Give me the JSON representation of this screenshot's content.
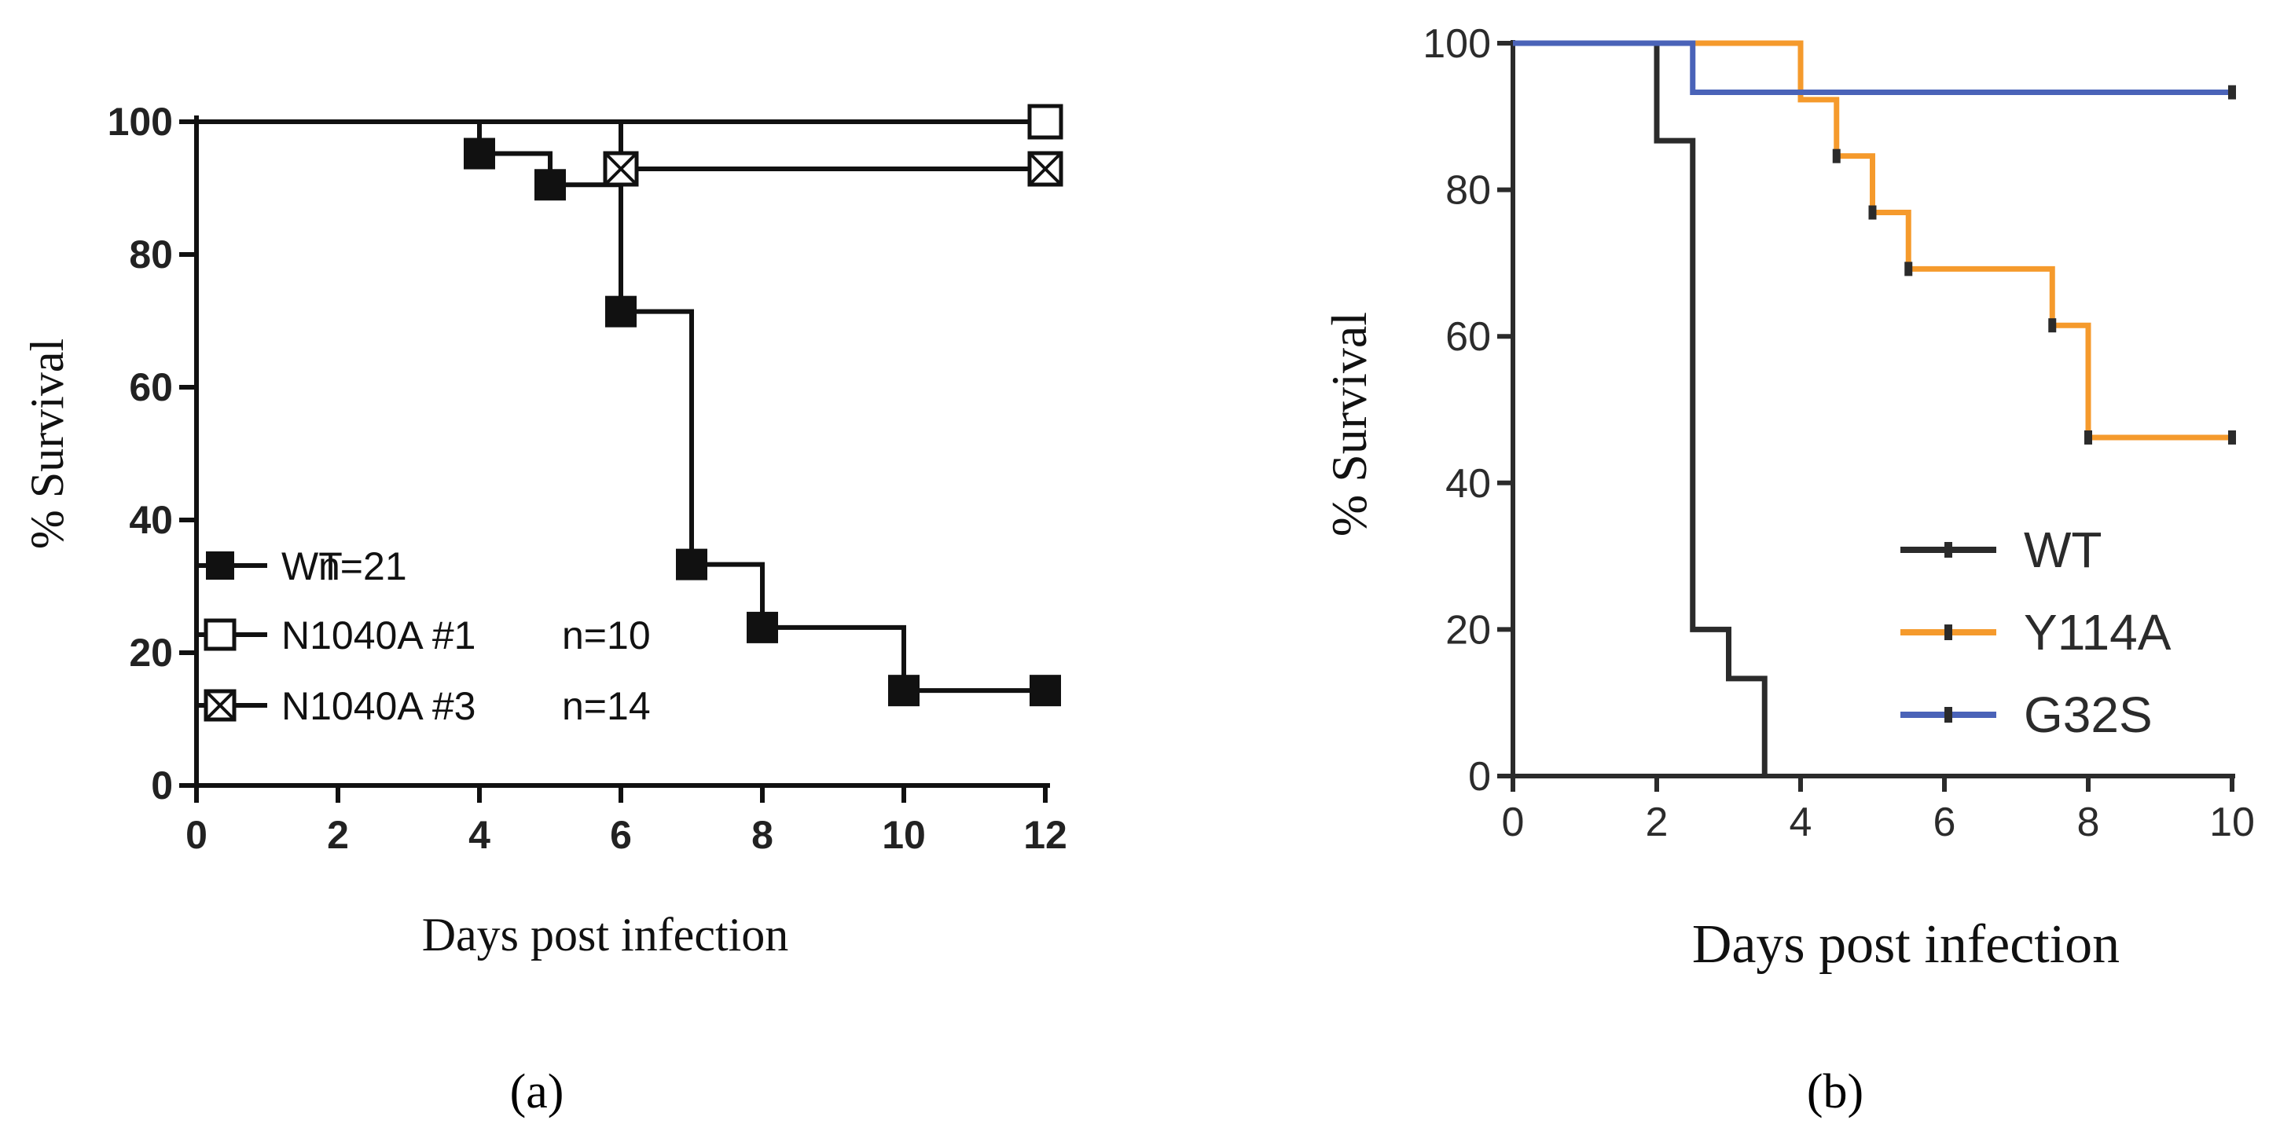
{
  "chart_data": [
    {
      "type": "line",
      "subtype": "kaplan-meier",
      "panel_label": "(a)",
      "xlabel": "Days post infection",
      "ylabel": "% Survival",
      "xlim": [
        0,
        12
      ],
      "ylim": [
        0,
        100
      ],
      "xticks": [
        "0",
        "2",
        "4",
        "6",
        "8",
        "10",
        "12"
      ],
      "yticks": [
        "0",
        "20",
        "40",
        "60",
        "80",
        "100"
      ],
      "legend_position": "bottom-left",
      "series": [
        {
          "name": "WT",
          "n_label": "n=21",
          "marker": "filled-square",
          "color": "#111111",
          "steps": [
            [
              0,
              100
            ],
            [
              4,
              95.2
            ],
            [
              5,
              90.5
            ],
            [
              6,
              71.4
            ],
            [
              7,
              33.3
            ],
            [
              8,
              23.8
            ],
            [
              10,
              14.3
            ],
            [
              12,
              14.3
            ]
          ],
          "markers": [
            [
              4,
              95.2
            ],
            [
              5,
              90.5
            ],
            [
              6,
              71.4
            ],
            [
              7,
              33.3
            ],
            [
              8,
              23.8
            ],
            [
              10,
              14.3
            ],
            [
              12,
              14.3
            ]
          ]
        },
        {
          "name": "N1040A #1",
          "n_label": "n=10",
          "marker": "open-square",
          "color": "#111111",
          "steps": [
            [
              0,
              100
            ],
            [
              12,
              100
            ]
          ],
          "markers": [
            [
              12,
              100
            ]
          ]
        },
        {
          "name": "N1040A #3",
          "n_label": "n=14",
          "marker": "crossed-square",
          "color": "#111111",
          "steps": [
            [
              0,
              100
            ],
            [
              6,
              92.9
            ],
            [
              12,
              92.9
            ]
          ],
          "markers": [
            [
              6,
              92.9
            ],
            [
              12,
              92.9
            ]
          ]
        }
      ]
    },
    {
      "type": "line",
      "subtype": "kaplan-meier",
      "panel_label": "(b)",
      "xlabel": "Days post infection",
      "ylabel": "% Survival",
      "xlim": [
        0,
        10
      ],
      "ylim": [
        0,
        100
      ],
      "xticks": [
        "0",
        "2",
        "4",
        "6",
        "8",
        "10"
      ],
      "yticks": [
        "0",
        "20",
        "40",
        "60",
        "80",
        "100"
      ],
      "legend_position": "bottom-right",
      "series": [
        {
          "name": "WT",
          "color": "#2b2b2b",
          "steps": [
            [
              0,
              100
            ],
            [
              2,
              86.7
            ],
            [
              2.5,
              20
            ],
            [
              3,
              13.3
            ],
            [
              3.5,
              0
            ]
          ],
          "markers": []
        },
        {
          "name": "Y114A",
          "color": "#f59a2c",
          "steps": [
            [
              0,
              100
            ],
            [
              4,
              92.3
            ],
            [
              4.5,
              84.6
            ],
            [
              5,
              76.9
            ],
            [
              5.5,
              69.2
            ],
            [
              7.5,
              61.5
            ],
            [
              8,
              46.2
            ],
            [
              10,
              46.2
            ]
          ],
          "markers": [
            [
              4.5,
              84.6
            ],
            [
              5,
              76.9
            ],
            [
              5.5,
              69.2
            ],
            [
              7.5,
              61.5
            ],
            [
              8,
              46.2
            ],
            [
              10,
              46.2
            ]
          ]
        },
        {
          "name": "G32S",
          "color": "#4a63b8",
          "steps": [
            [
              0,
              100
            ],
            [
              2.5,
              93.3
            ],
            [
              10,
              93.3
            ]
          ],
          "markers": [
            [
              10,
              93.3
            ]
          ]
        }
      ]
    }
  ]
}
